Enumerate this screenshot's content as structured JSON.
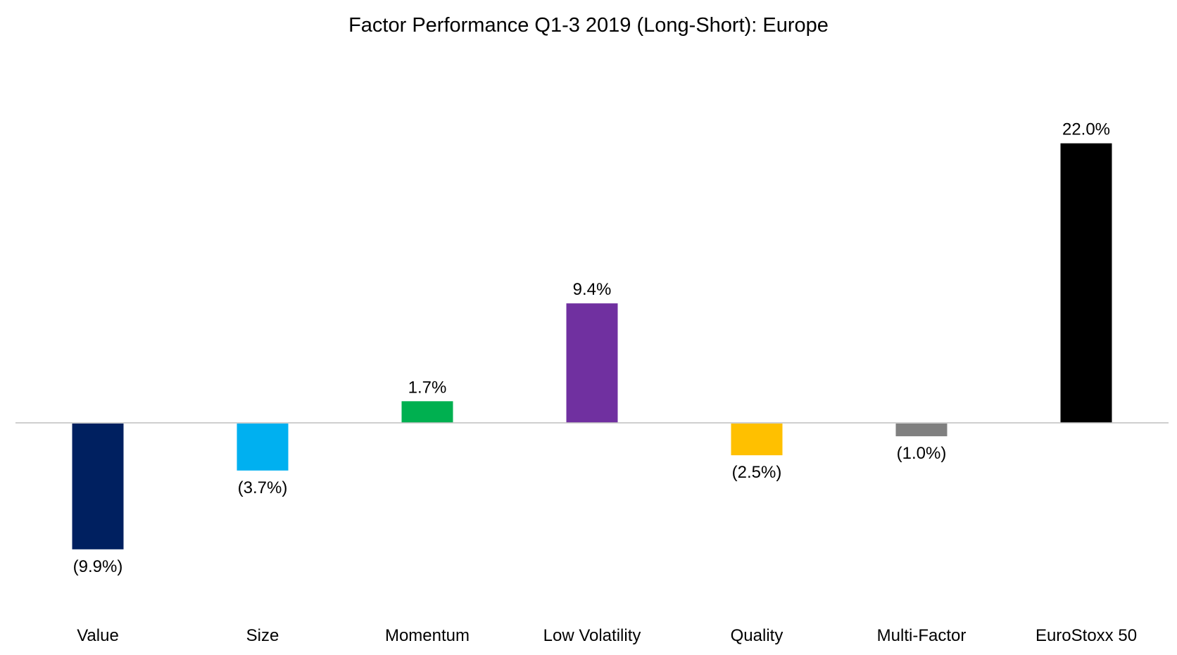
{
  "chart_data": {
    "type": "bar",
    "title": "Factor Performance Q1-3 2019 (Long-Short): Europe",
    "xlabel": "",
    "ylabel": "",
    "unit": "%",
    "categories": [
      "Value",
      "Size",
      "Momentum",
      "Low Volatility",
      "Quality",
      "Multi-Factor",
      "EuroStoxx 50"
    ],
    "values": [
      -9.9,
      -3.7,
      1.7,
      9.4,
      -2.5,
      -1.0,
      22.0
    ],
    "value_labels": [
      "(9.9%)",
      "(3.7%)",
      "1.7%",
      "9.4%",
      "(2.5%)",
      "(1.0%)",
      "22.0%"
    ],
    "colors": [
      "#002060",
      "#00B0F0",
      "#00B050",
      "#7030A0",
      "#FFC000",
      "#808080",
      "#000000"
    ],
    "zero_line_color": "#BFBFBF",
    "grid": false,
    "legend": "none",
    "show_y_axis": false
  }
}
